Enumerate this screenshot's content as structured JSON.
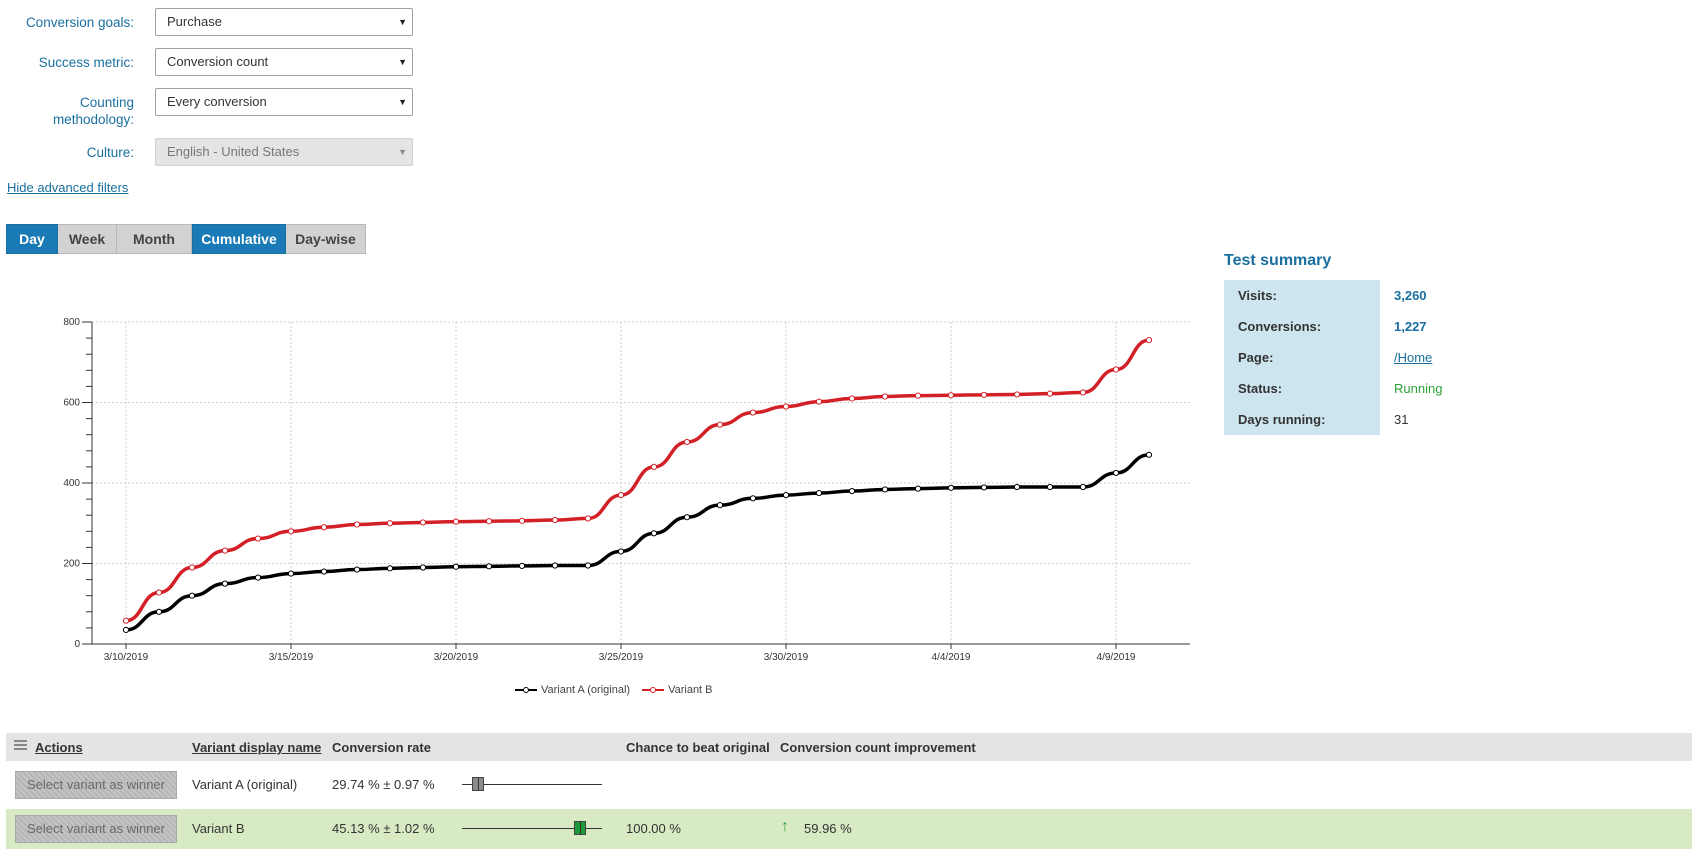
{
  "filters": [
    {
      "label": "Conversion goals:",
      "value": "Purchase",
      "disabled": false
    },
    {
      "label": "Success metric:",
      "value": "Conversion count",
      "disabled": false
    },
    {
      "label": "Counting methodology:",
      "value": "Every conversion",
      "disabled": false
    },
    {
      "label": "Culture:",
      "value": "English - United States",
      "disabled": true
    }
  ],
  "advanced_link": "Hide advanced filters",
  "period_buttons": {
    "day": "Day",
    "week": "Week",
    "month": "Month"
  },
  "mode_buttons": {
    "cumulative": "Cumulative",
    "daywise": "Day-wise"
  },
  "chart_data": {
    "type": "line",
    "x": [
      "3/10/2019",
      "3/11/2019",
      "3/12/2019",
      "3/13/2019",
      "3/14/2019",
      "3/15/2019",
      "3/16/2019",
      "3/17/2019",
      "3/18/2019",
      "3/19/2019",
      "3/20/2019",
      "3/21/2019",
      "3/22/2019",
      "3/23/2019",
      "3/24/2019",
      "3/25/2019",
      "3/26/2019",
      "3/27/2019",
      "3/28/2019",
      "3/29/2019",
      "3/30/2019",
      "3/31/2019",
      "4/1/2019",
      "4/2/2019",
      "4/3/2019",
      "4/4/2019",
      "4/5/2019",
      "4/6/2019",
      "4/7/2019",
      "4/8/2019",
      "4/9/2019",
      "4/10/2019"
    ],
    "x_tick_labels": [
      "3/10/2019",
      "3/15/2019",
      "3/20/2019",
      "3/25/2019",
      "3/30/2019",
      "4/4/2019",
      "4/9/2019"
    ],
    "y_ticks": [
      0,
      200,
      400,
      600,
      800
    ],
    "ylim": [
      0,
      800
    ],
    "grid": true,
    "legend_position": "bottom",
    "series": [
      {
        "name": "Variant A (original)",
        "color": "#000000",
        "values": [
          35,
          80,
          120,
          150,
          165,
          175,
          180,
          185,
          188,
          190,
          192,
          193,
          194,
          195,
          195,
          230,
          275,
          315,
          345,
          362,
          370,
          375,
          380,
          384,
          386,
          388,
          389,
          390,
          390,
          390,
          425,
          470
        ]
      },
      {
        "name": "Variant B",
        "color": "#d32027",
        "values": [
          58,
          128,
          190,
          232,
          262,
          280,
          290,
          297,
          300,
          302,
          304,
          305,
          306,
          308,
          312,
          370,
          440,
          502,
          545,
          575,
          590,
          602,
          610,
          615,
          617,
          618,
          619,
          620,
          622,
          625,
          682,
          755
        ]
      }
    ]
  },
  "summary": {
    "title": "Test summary",
    "rows": [
      {
        "label": "Visits:",
        "value": "3,260"
      },
      {
        "label": "Conversions:",
        "value": "1,227"
      },
      {
        "label": "Page:",
        "value": "/Home"
      },
      {
        "label": "Status:",
        "value": "Running"
      },
      {
        "label": "Days running:",
        "value": "31"
      }
    ]
  },
  "table": {
    "headers": {
      "actions": "Actions",
      "name": "Variant display name",
      "rate": "Conversion rate",
      "chance": "Chance to beat original",
      "improvement": "Conversion count improvement"
    },
    "rows": [
      {
        "button": "Select variant as winner",
        "name": "Variant A (original)",
        "rate": "29.74 % ± 0.97 %",
        "rate_value": 29.74,
        "chance": "",
        "improvement": "",
        "winner": false
      },
      {
        "button": "Select variant as winner",
        "name": "Variant B",
        "rate": "45.13 % ± 1.02 %",
        "rate_value": 45.13,
        "chance": "100.00 %",
        "improvement": "59.96 %",
        "winner": true
      }
    ]
  }
}
